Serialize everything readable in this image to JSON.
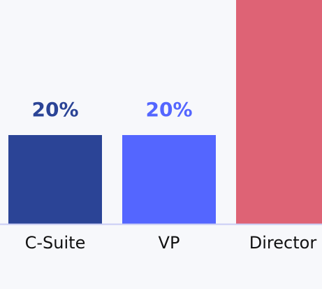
{
  "chart_data": {
    "type": "bar",
    "categories": [
      "C-Suite",
      "VP",
      "Director"
    ],
    "values": [
      20,
      20,
      60
    ],
    "value_labels": [
      "20%",
      "20%",
      null
    ],
    "colors": [
      "#2b4496",
      "#5466ff",
      "#de6375"
    ]
  }
}
